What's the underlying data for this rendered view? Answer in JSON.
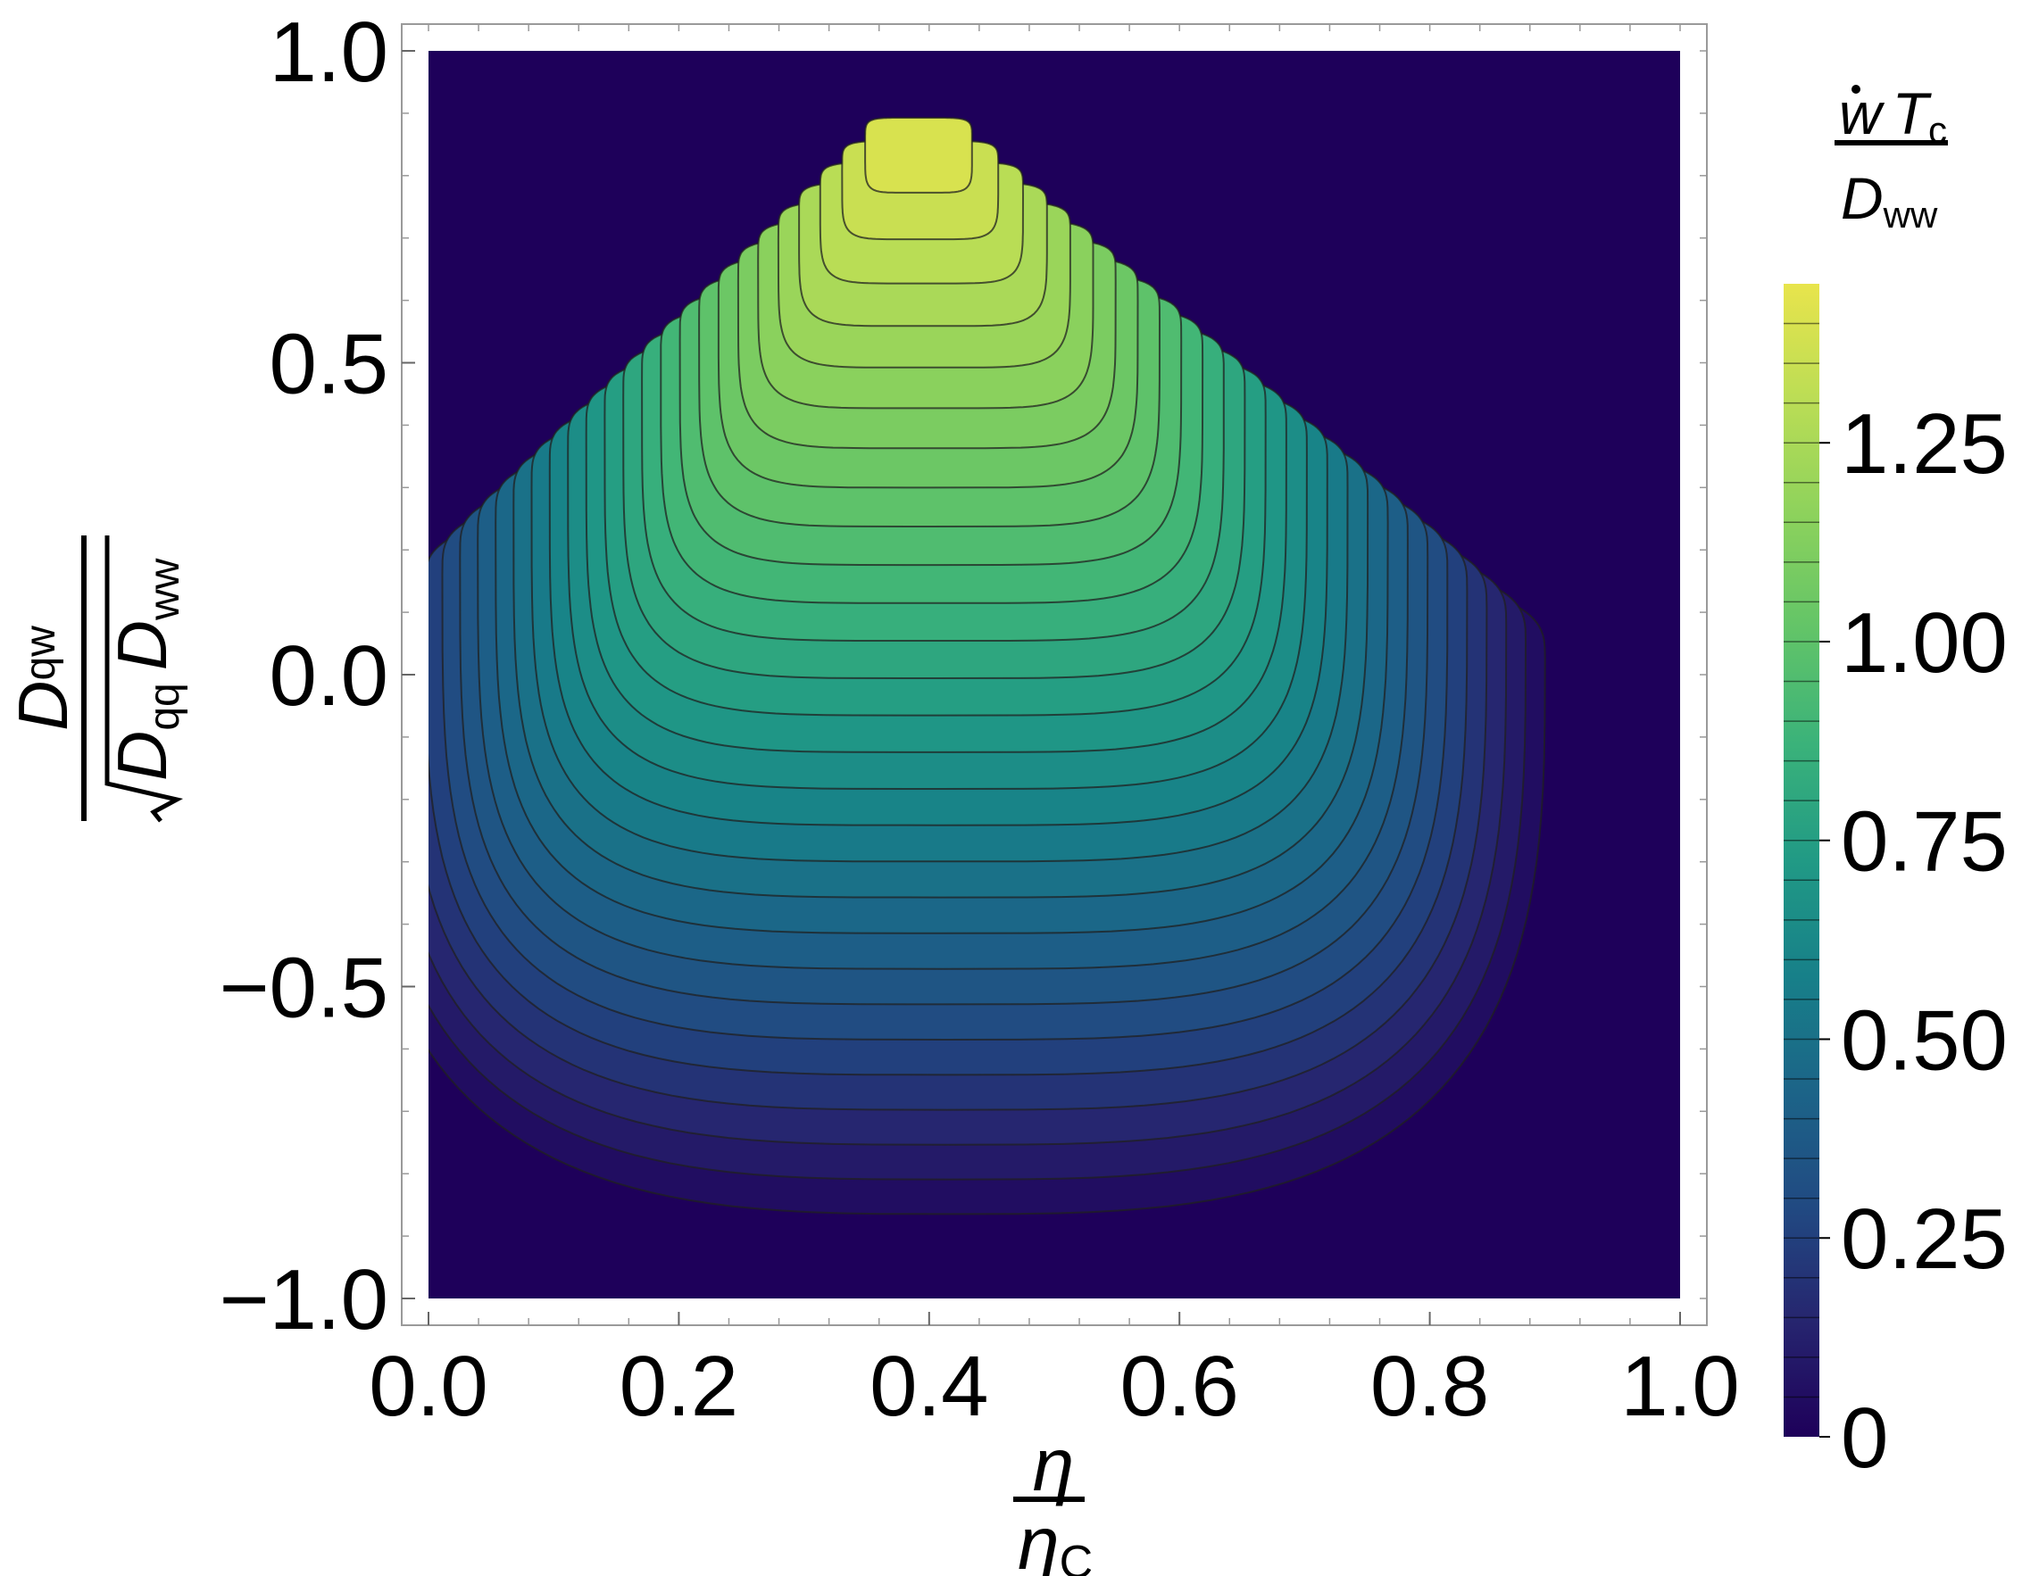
{
  "chart_data": {
    "type": "heatmap",
    "subtype": "contour",
    "x_axis": {
      "var": "η",
      "denom": "η",
      "denom_sub": "C",
      "range": [
        0,
        1
      ],
      "ticks": [
        0,
        0.2,
        0.4,
        0.6,
        0.8,
        1.0
      ],
      "tick_labels": [
        "0.0",
        "0.2",
        "0.4",
        "0.6",
        "0.8",
        "1.0"
      ]
    },
    "y_axis": {
      "num_var": "D",
      "num_sub": "qw",
      "den_var1": "D",
      "den_sub1": "qq",
      "den_var2": "D",
      "den_sub2": "ww",
      "range": [
        -1,
        1
      ],
      "ticks": [
        -1,
        -0.5,
        0,
        0.5,
        1
      ],
      "tick_labels": [
        "−1.0",
        "−0.5",
        "0.0",
        "0.5",
        "1.0"
      ]
    },
    "colorbar": {
      "title_num_w": "w",
      "title_num_T": "T",
      "title_num_sub": "c",
      "title_den_var": "D",
      "title_den_sub": "ww",
      "range": [
        0,
        1.45
      ],
      "ticks": [
        0,
        0.25,
        0.5,
        0.75,
        1.0,
        1.25
      ],
      "tick_labels": [
        "0",
        "0.25",
        "0.50",
        "0.75",
        "1.00",
        "1.25"
      ],
      "colormap": "viridis",
      "contour_step": 0.05
    },
    "peak": {
      "x": 0.39,
      "y": 0.9,
      "value": 1.45
    },
    "contour_levels_count": 29,
    "grid": false,
    "legend": "colorbar-right",
    "colors": {
      "background_region": "#1e005a",
      "peak": "#e8e44c",
      "contour_line": "#202020"
    }
  }
}
